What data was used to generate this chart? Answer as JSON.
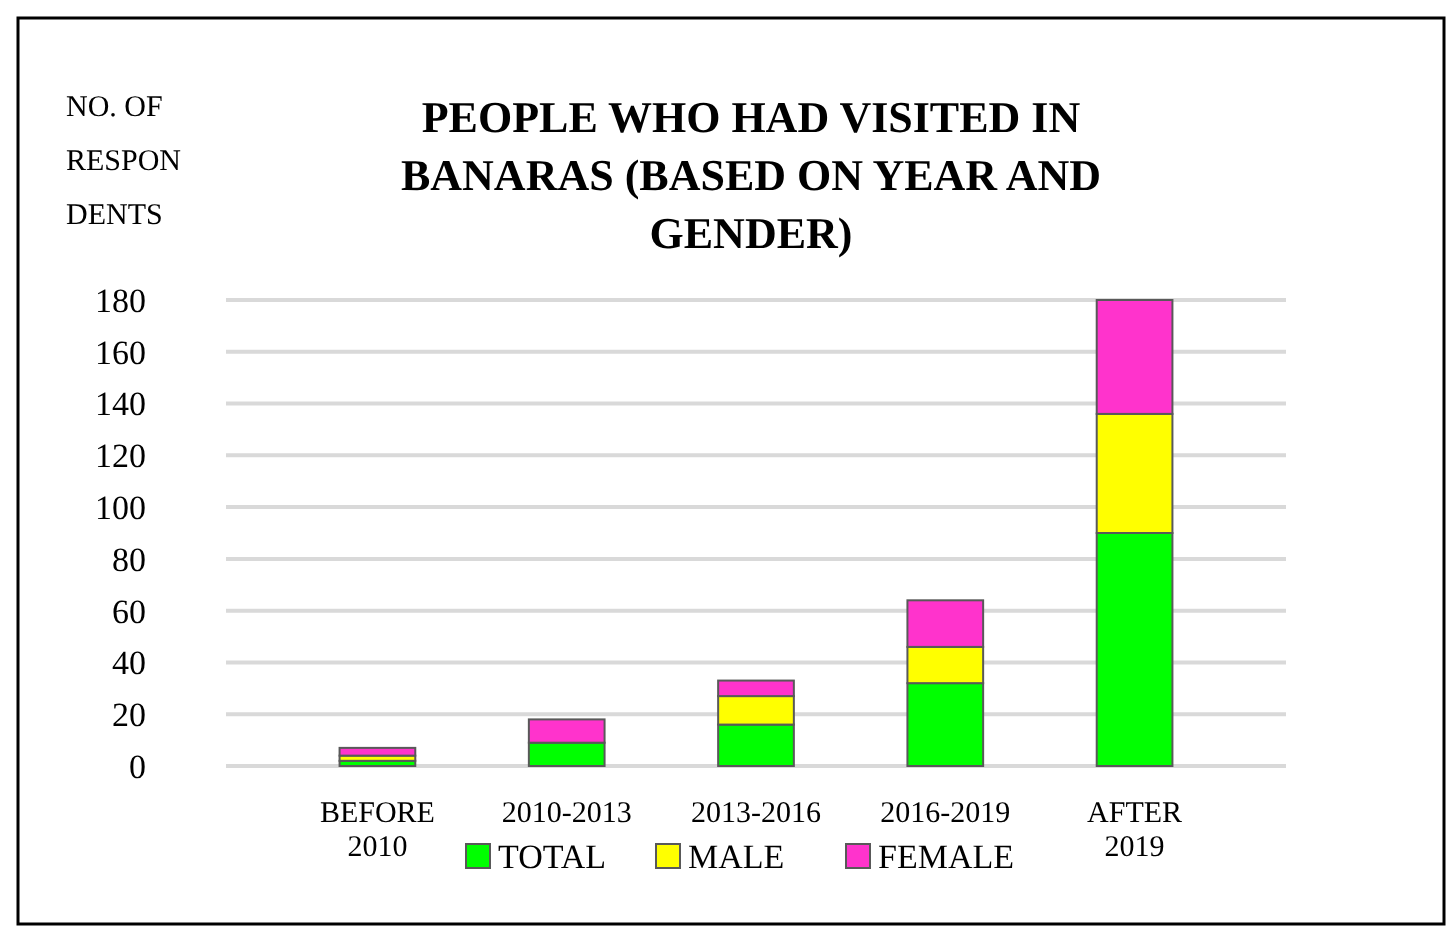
{
  "chart_data": {
    "type": "bar",
    "title": "PEOPLE WHO HAD VISITED IN BANARAS (BASED ON YEAR AND GENDER)",
    "ylabel": "NO. OF\nRESPON\nDENTS",
    "categories": [
      "BEFORE 2010",
      "2010-2013",
      "2013-2016",
      "2016-2019",
      "AFTER 2019"
    ],
    "series": [
      {
        "name": "TOTAL",
        "color": "#00ff00",
        "values": [
          2,
          9,
          16,
          32,
          90
        ]
      },
      {
        "name": "MALE",
        "color": "#ffff00",
        "values": [
          2,
          0,
          11,
          14,
          46
        ]
      },
      {
        "name": "FEMALE",
        "color": "#ff33cc",
        "values": [
          3,
          9,
          6,
          18,
          44
        ]
      }
    ],
    "stacked": true,
    "ylim": [
      0,
      180
    ],
    "yticks": [
      0,
      20,
      40,
      60,
      80,
      100,
      120,
      140,
      160,
      180
    ],
    "grid": true,
    "legend": "bottom"
  }
}
